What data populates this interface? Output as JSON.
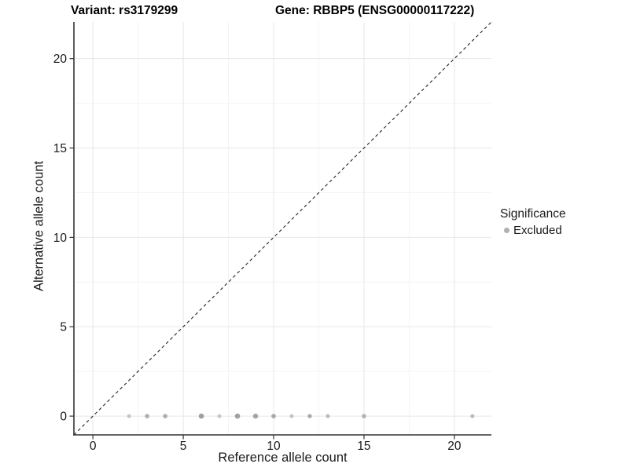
{
  "titles": {
    "variant": "Variant: rs3179299",
    "gene": "Gene: RBBP5 (ENSG00000117222)"
  },
  "chart_data": {
    "type": "scatter",
    "title_left": "Variant: rs3179299",
    "title_right": "Gene: RBBP5 (ENSG00000117222)",
    "xlabel": "Reference allele count",
    "ylabel": "Alternative allele count",
    "xlim": [
      -1.05,
      22.05
    ],
    "ylim": [
      -1.05,
      22.05
    ],
    "x_ticks": [
      0,
      5,
      10,
      15,
      20
    ],
    "x_tick_labels": [
      "0",
      "5",
      "10",
      "15",
      "20"
    ],
    "y_ticks": [
      0,
      5,
      10,
      15,
      20
    ],
    "y_tick_labels": [
      "0",
      "5",
      "10",
      "15",
      "20"
    ],
    "x_minor_ticks": [
      2.5,
      7.5,
      12.5,
      17.5
    ],
    "y_minor_ticks": [
      2.5,
      7.5,
      12.5,
      17.5
    ],
    "grid": {
      "visible": true,
      "major_color": "#e7e7e7",
      "minor_color": "#f4f4f4"
    },
    "axis_line_color": "#333333",
    "identity_line": {
      "style": "dashed",
      "from": -1.05,
      "to": 22.05,
      "color": "#222222",
      "meaning": "y = x"
    },
    "series_name": "Excluded",
    "points": [
      {
        "x": 2,
        "y": 0,
        "color": "#c6c6c6",
        "r": 2.5
      },
      {
        "x": 3,
        "y": 0,
        "color": "#aeaeae",
        "r": 2.8
      },
      {
        "x": 4,
        "y": 0,
        "color": "#aeaeae",
        "r": 2.8
      },
      {
        "x": 6,
        "y": 0,
        "color": "#9f9f9f",
        "r": 3.3
      },
      {
        "x": 7,
        "y": 0,
        "color": "#c6c6c6",
        "r": 2.5
      },
      {
        "x": 8,
        "y": 0,
        "color": "#9f9f9f",
        "r": 3.3
      },
      {
        "x": 9,
        "y": 0,
        "color": "#a4a4a4",
        "r": 3.2
      },
      {
        "x": 10,
        "y": 0,
        "color": "#a9a9a9",
        "r": 2.9
      },
      {
        "x": 11,
        "y": 0,
        "color": "#c2c2c2",
        "r": 2.5
      },
      {
        "x": 12,
        "y": 0,
        "color": "#ababab",
        "r": 2.7
      },
      {
        "x": 13,
        "y": 0,
        "color": "#bcbcbc",
        "r": 2.6
      },
      {
        "x": 15,
        "y": 0,
        "color": "#b3b3b3",
        "r": 2.8
      },
      {
        "x": 21,
        "y": 0,
        "color": "#bcbcbc",
        "r": 2.6
      }
    ],
    "legend": {
      "position": "right",
      "title": "Significance",
      "items": [
        {
          "label": "Excluded",
          "color": "#b0b0b0"
        }
      ]
    }
  }
}
